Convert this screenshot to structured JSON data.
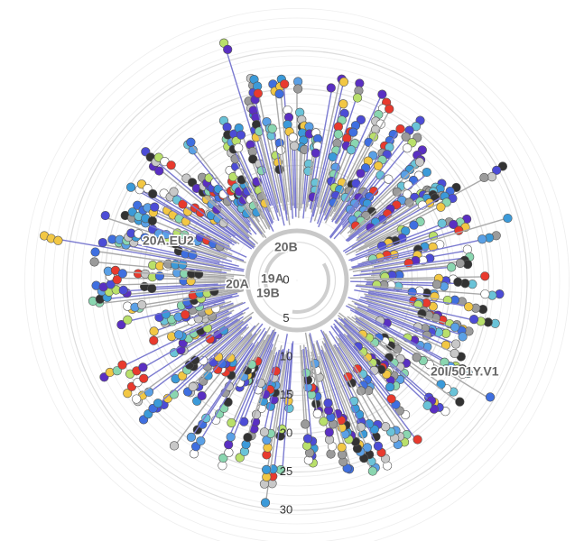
{
  "chart_data": {
    "type": "radial-tree",
    "rlim": [
      0,
      36
    ],
    "rticks": [
      0,
      5,
      10,
      15,
      20,
      25,
      30
    ],
    "clades": [
      "20B",
      "19A",
      "19B",
      "20A",
      "20A.EU2",
      "20I/501Y.V1"
    ]
  }
}
